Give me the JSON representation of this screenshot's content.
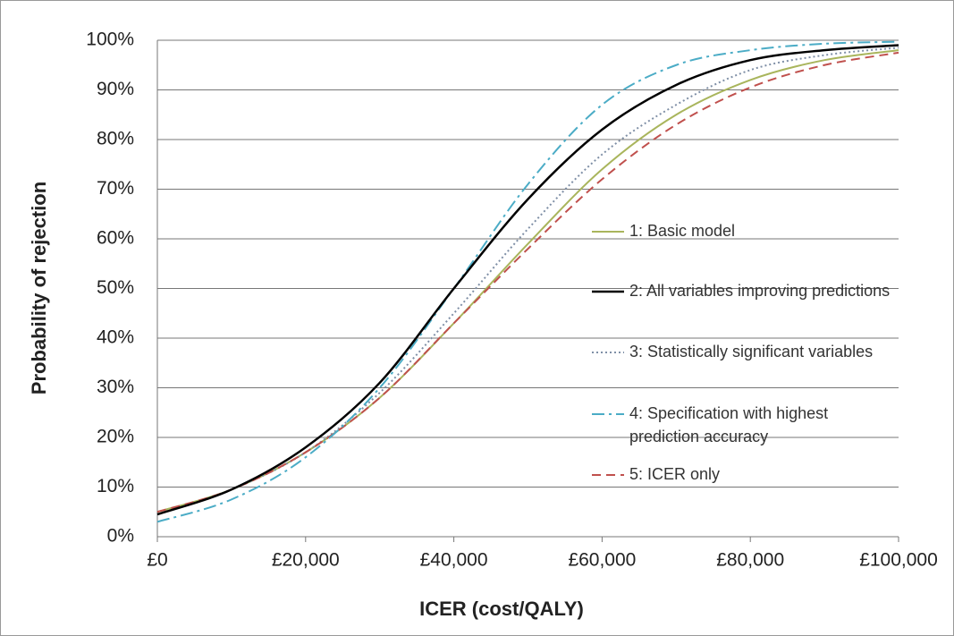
{
  "chart_data": {
    "type": "line",
    "xlabel": "ICER (cost/QALY)",
    "ylabel": "Probability of rejection",
    "x": [
      0,
      10000,
      20000,
      30000,
      40000,
      50000,
      60000,
      70000,
      80000,
      90000,
      100000
    ],
    "series": [
      {
        "name": "1: Basic model",
        "color": "#a9b55c",
        "line_style": "solid",
        "values": [
          5,
          9.5,
          17,
          28,
          43,
          59,
          74,
          85,
          92,
          96,
          98
        ]
      },
      {
        "name": "2: All variables improving predictions",
        "color": "#000000",
        "line_style": "solid",
        "values": [
          4.5,
          9.5,
          18,
          31,
          50,
          68,
          82,
          91,
          96,
          98,
          99
        ]
      },
      {
        "name": "3: Statistically significant variables",
        "color": "#7f8fa6",
        "line_style": "dotted",
        "values": [
          4.5,
          9.5,
          17,
          29,
          45,
          62,
          77,
          87,
          94,
          97,
          98.5
        ]
      },
      {
        "name": "4: Specification with highest prediction accuracy",
        "color": "#4bacc6",
        "line_style": "dash-dot",
        "values": [
          3,
          7.5,
          16,
          30,
          50,
          71,
          87,
          95,
          98,
          99.3,
          99.7
        ]
      },
      {
        "name": "5: ICER only",
        "color": "#c0504d",
        "line_style": "dashed",
        "values": [
          5,
          9.5,
          17,
          28,
          43,
          58,
          72,
          83,
          90.5,
          95,
          97.5
        ]
      }
    ],
    "xlim": [
      0,
      100000
    ],
    "xticks": [
      {
        "value": 0,
        "label": "£0"
      },
      {
        "value": 20000,
        "label": "£20,000"
      },
      {
        "value": 40000,
        "label": "£40,000"
      },
      {
        "value": 60000,
        "label": "£60,000"
      },
      {
        "value": 80000,
        "label": "£80,000"
      },
      {
        "value": 100000,
        "label": "£100,000"
      }
    ],
    "ylim": [
      0,
      100
    ],
    "yticks": [
      {
        "value": 0,
        "label": "0%"
      },
      {
        "value": 10,
        "label": "10%"
      },
      {
        "value": 20,
        "label": "20%"
      },
      {
        "value": 30,
        "label": "30%"
      },
      {
        "value": 40,
        "label": "40%"
      },
      {
        "value": 50,
        "label": "50%"
      },
      {
        "value": 60,
        "label": "60%"
      },
      {
        "value": 70,
        "label": "70%"
      },
      {
        "value": 80,
        "label": "80%"
      },
      {
        "value": 90,
        "label": "90%"
      },
      {
        "value": 100,
        "label": "100%"
      }
    ],
    "grid": true,
    "legend": "right"
  }
}
